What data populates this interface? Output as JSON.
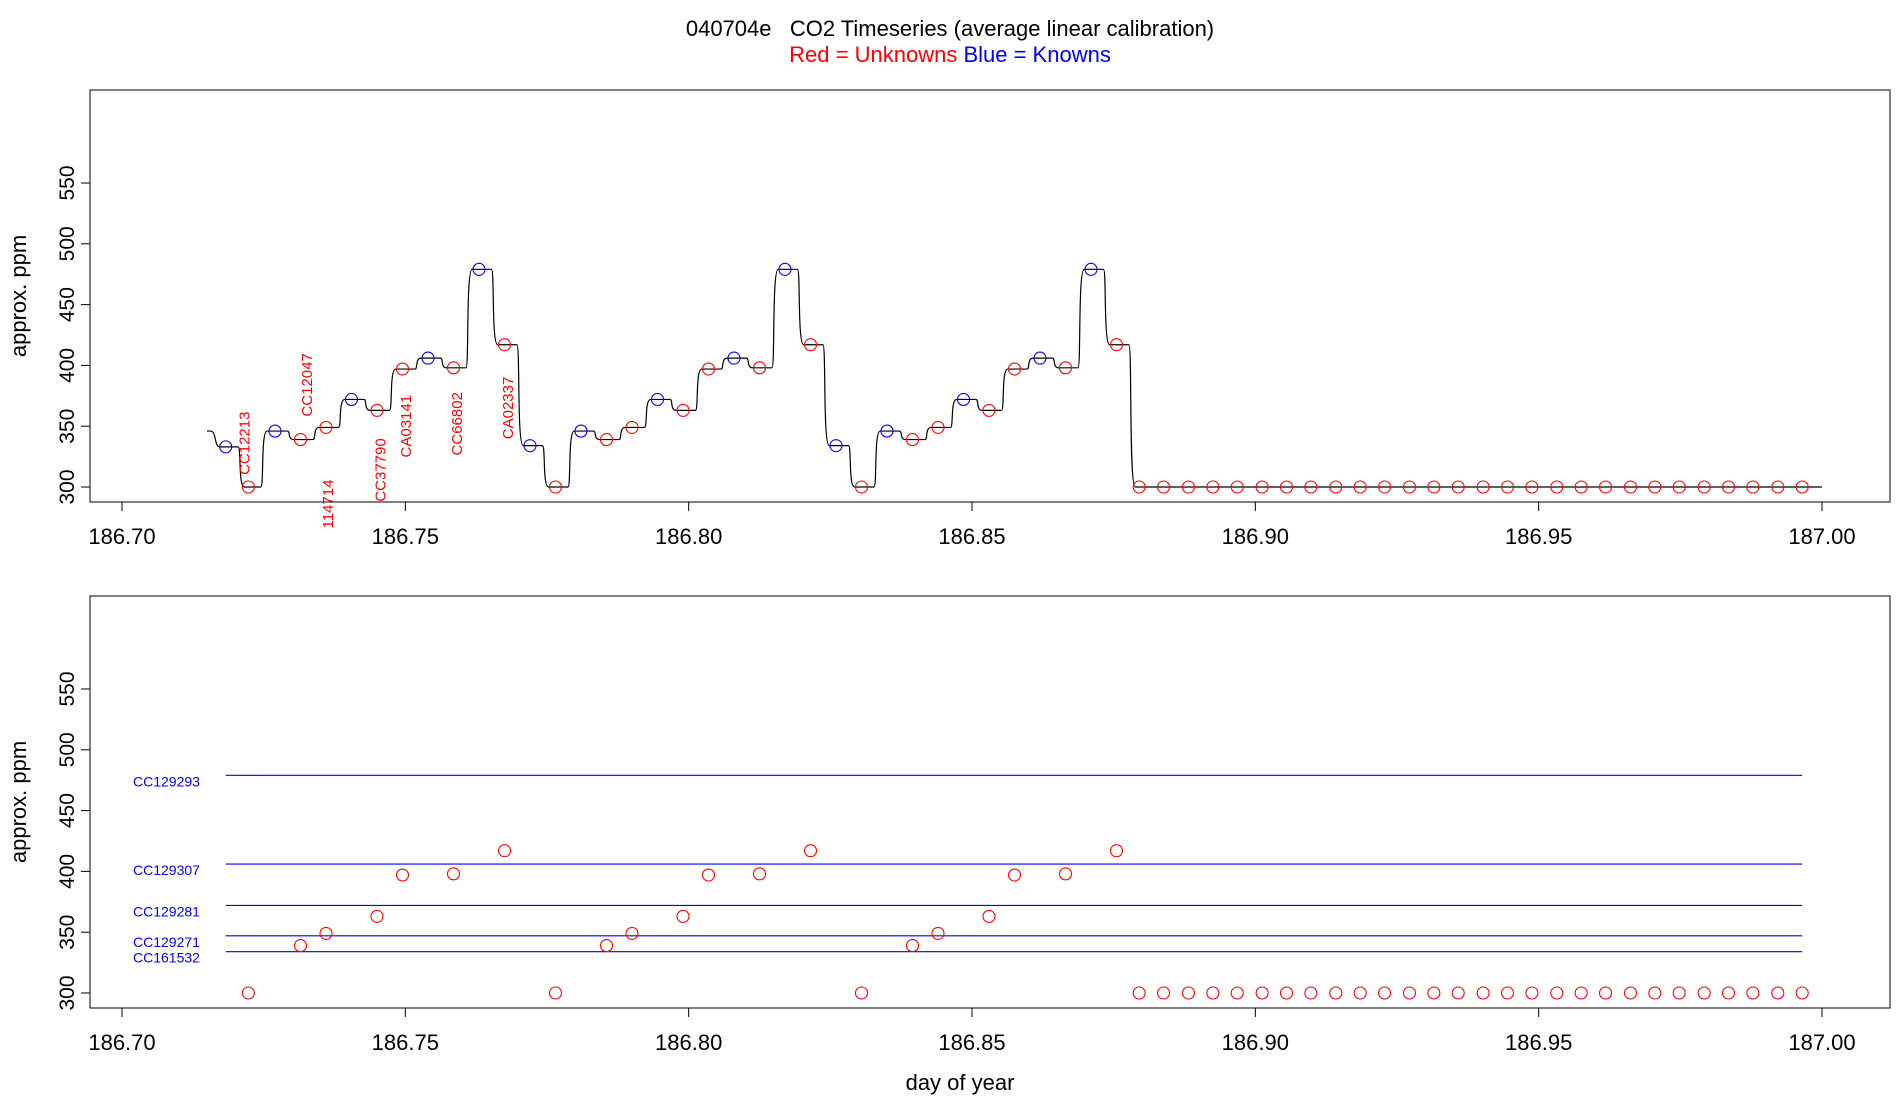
{
  "title": {
    "id": "040704e",
    "text": "CO2 Timeseries (average linear calibration)",
    "legend_red": "Red = Unknowns",
    "legend_blue": "Blue = Knowns"
  },
  "colors": {
    "unknown": "#ff0000",
    "known": "#0000ff",
    "trace": "#000000"
  },
  "chart_data": [
    {
      "type": "line",
      "panel": "top",
      "xlabel": "",
      "ylabel": "approx. ppm",
      "xlim": [
        186.7,
        187.0
      ],
      "ylim": [
        292,
        560
      ],
      "xticks": [
        "186.70",
        "186.75",
        "186.80",
        "186.85",
        "186.90",
        "186.95",
        "187.00"
      ],
      "yticks": [
        300,
        350,
        400,
        450,
        500,
        550
      ],
      "grid": false,
      "trace": {
        "start_x": 186.715,
        "end_x": 187.0,
        "start_y": 346,
        "segments": [
          [
            186.7183,
            333
          ],
          [
            186.7223,
            300
          ],
          [
            186.727,
            346
          ],
          [
            186.7315,
            339
          ],
          [
            186.736,
            349
          ],
          [
            186.7405,
            372
          ],
          [
            186.745,
            363
          ],
          [
            186.7495,
            397
          ],
          [
            186.754,
            406
          ],
          [
            186.7585,
            398
          ],
          [
            186.763,
            479
          ],
          [
            186.7675,
            417
          ],
          [
            186.772,
            334
          ],
          [
            186.7765,
            300
          ],
          [
            186.781,
            346
          ],
          [
            186.7855,
            339
          ],
          [
            186.79,
            349
          ],
          [
            186.7945,
            372
          ],
          [
            186.799,
            363
          ],
          [
            186.8035,
            397
          ],
          [
            186.808,
            406
          ],
          [
            186.8125,
            398
          ],
          [
            186.817,
            479
          ],
          [
            186.8215,
            417
          ],
          [
            186.826,
            334
          ],
          [
            186.8305,
            300
          ],
          [
            186.835,
            346
          ],
          [
            186.8395,
            339
          ],
          [
            186.844,
            349
          ],
          [
            186.8485,
            372
          ],
          [
            186.853,
            363
          ],
          [
            186.8575,
            397
          ],
          [
            186.862,
            406
          ],
          [
            186.8665,
            398
          ],
          [
            186.871,
            479
          ],
          [
            186.8755,
            417
          ],
          [
            187.0,
            300
          ]
        ]
      },
      "knowns": [
        [
          186.7183,
          333
        ],
        [
          186.727,
          346
        ],
        [
          186.7405,
          372
        ],
        [
          186.754,
          406
        ],
        [
          186.763,
          479
        ],
        [
          186.772,
          334
        ],
        [
          186.781,
          346
        ],
        [
          186.7945,
          372
        ],
        [
          186.808,
          406
        ],
        [
          186.817,
          479
        ],
        [
          186.826,
          334
        ],
        [
          186.835,
          346
        ],
        [
          186.8485,
          372
        ],
        [
          186.862,
          406
        ],
        [
          186.871,
          479
        ]
      ],
      "unknowns": [
        [
          186.7223,
          300
        ],
        [
          186.7315,
          339
        ],
        [
          186.736,
          349
        ],
        [
          186.745,
          363
        ],
        [
          186.7495,
          397
        ],
        [
          186.7585,
          398
        ],
        [
          186.7675,
          417
        ],
        [
          186.7765,
          300
        ],
        [
          186.7855,
          339
        ],
        [
          186.79,
          349
        ],
        [
          186.799,
          363
        ],
        [
          186.8035,
          397
        ],
        [
          186.8125,
          398
        ],
        [
          186.8215,
          417
        ],
        [
          186.8305,
          300
        ],
        [
          186.8395,
          339
        ],
        [
          186.844,
          349
        ],
        [
          186.853,
          363
        ],
        [
          186.8575,
          397
        ],
        [
          186.8665,
          398
        ],
        [
          186.8755,
          417
        ],
        [
          186.8795,
          300
        ],
        [
          186.8838,
          300
        ],
        [
          186.8882,
          300
        ],
        [
          186.8925,
          300
        ],
        [
          186.8968,
          300
        ],
        [
          186.9012,
          300
        ],
        [
          186.9055,
          300
        ],
        [
          186.9098,
          300
        ],
        [
          186.9142,
          300
        ],
        [
          186.9185,
          300
        ],
        [
          186.9228,
          300
        ],
        [
          186.9272,
          300
        ],
        [
          186.9315,
          300
        ],
        [
          186.9358,
          300
        ],
        [
          186.9402,
          300
        ],
        [
          186.9445,
          300
        ],
        [
          186.9488,
          300
        ],
        [
          186.9532,
          300
        ],
        [
          186.9575,
          300
        ],
        [
          186.9618,
          300
        ],
        [
          186.9662,
          300
        ],
        [
          186.9705,
          300
        ],
        [
          186.9748,
          300
        ],
        [
          186.9792,
          300
        ],
        [
          186.9835,
          300
        ],
        [
          186.9878,
          300
        ],
        [
          186.9922,
          300
        ],
        [
          186.9965,
          300
        ]
      ],
      "annotations": [
        {
          "text": "CC12213",
          "x": 186.7225,
          "y": 336
        },
        {
          "text": "CC12047",
          "x": 186.7335,
          "y": 384
        },
        {
          "text": "114714",
          "x": 186.7372,
          "y": 286
        },
        {
          "text": "CC37790",
          "x": 186.7465,
          "y": 314
        },
        {
          "text": "CA03141",
          "x": 186.751,
          "y": 350
        },
        {
          "text": "CC66802",
          "x": 186.76,
          "y": 352
        },
        {
          "text": "CA02337",
          "x": 186.769,
          "y": 365
        }
      ]
    },
    {
      "type": "scatter",
      "panel": "bottom",
      "xlabel": "day of year",
      "ylabel": "approx. ppm",
      "xlim": [
        186.7,
        187.0
      ],
      "ylim": [
        292,
        560
      ],
      "xticks": [
        "186.70",
        "186.75",
        "186.80",
        "186.85",
        "186.90",
        "186.95",
        "187.00"
      ],
      "yticks": [
        300,
        350,
        400,
        450,
        500,
        550
      ],
      "grid": false,
      "reference_lines": [
        {
          "name": "CC129293",
          "y": 479
        },
        {
          "name": "CC129307",
          "y": 406
        },
        {
          "name": "CC129281",
          "y": 372
        },
        {
          "name": "CC129271",
          "y": 347
        },
        {
          "name": "CC161532",
          "y": 334
        }
      ],
      "reference_line_x": [
        186.7183,
        186.9965
      ],
      "unknowns": [
        [
          186.7223,
          300
        ],
        [
          186.7315,
          339
        ],
        [
          186.736,
          349
        ],
        [
          186.745,
          363
        ],
        [
          186.7495,
          397
        ],
        [
          186.7585,
          398
        ],
        [
          186.7675,
          417
        ],
        [
          186.7765,
          300
        ],
        [
          186.7855,
          339
        ],
        [
          186.79,
          349
        ],
        [
          186.799,
          363
        ],
        [
          186.8035,
          397
        ],
        [
          186.8125,
          398
        ],
        [
          186.8215,
          417
        ],
        [
          186.8305,
          300
        ],
        [
          186.8395,
          339
        ],
        [
          186.844,
          349
        ],
        [
          186.853,
          363
        ],
        [
          186.8575,
          397
        ],
        [
          186.8665,
          398
        ],
        [
          186.8755,
          417
        ],
        [
          186.8795,
          300
        ],
        [
          186.8838,
          300
        ],
        [
          186.8882,
          300
        ],
        [
          186.8925,
          300
        ],
        [
          186.8968,
          300
        ],
        [
          186.9012,
          300
        ],
        [
          186.9055,
          300
        ],
        [
          186.9098,
          300
        ],
        [
          186.9142,
          300
        ],
        [
          186.9185,
          300
        ],
        [
          186.9228,
          300
        ],
        [
          186.9272,
          300
        ],
        [
          186.9315,
          300
        ],
        [
          186.9358,
          300
        ],
        [
          186.9402,
          300
        ],
        [
          186.9445,
          300
        ],
        [
          186.9488,
          300
        ],
        [
          186.9532,
          300
        ],
        [
          186.9575,
          300
        ],
        [
          186.9618,
          300
        ],
        [
          186.9662,
          300
        ],
        [
          186.9705,
          300
        ],
        [
          186.9748,
          300
        ],
        [
          186.9792,
          300
        ],
        [
          186.9835,
          300
        ],
        [
          186.9878,
          300
        ],
        [
          186.9922,
          300
        ],
        [
          186.9965,
          300
        ]
      ]
    }
  ]
}
